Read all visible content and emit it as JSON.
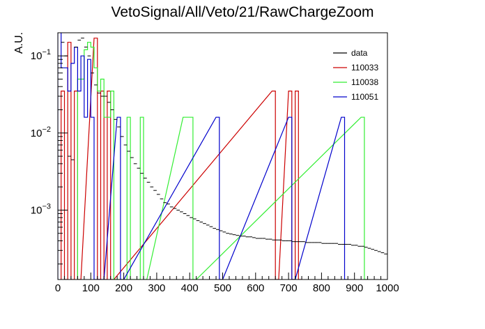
{
  "chart_data": {
    "type": "line",
    "title": "VetoSignal/All/Veto/21/RawChargeZoom",
    "xlabel": "",
    "ylabel": "A.U.",
    "xlim": [
      0,
      1000
    ],
    "ylim_log10": [
      -3.9,
      -0.7
    ],
    "yscale": "log",
    "x_ticks": [
      {
        "v": 0,
        "label": "0"
      },
      {
        "v": 100,
        "label": "100"
      },
      {
        "v": 200,
        "label": "200"
      },
      {
        "v": 300,
        "label": "300"
      },
      {
        "v": 400,
        "label": "400"
      },
      {
        "v": 500,
        "label": "500"
      },
      {
        "v": 600,
        "label": "600"
      },
      {
        "v": 700,
        "label": "700"
      },
      {
        "v": 800,
        "label": "800"
      },
      {
        "v": 900,
        "label": "900"
      },
      {
        "v": 1000,
        "label": "1000"
      }
    ],
    "y_ticks": [
      {
        "v": -1,
        "base": "10",
        "exp": "−1"
      },
      {
        "v": -2,
        "base": "10",
        "exp": "−2"
      },
      {
        "v": -3,
        "base": "10",
        "exp": "−3"
      }
    ],
    "legend_position": "top-right",
    "series": [
      {
        "name": "data",
        "color": "#000000",
        "kind": "errorbar",
        "x": [
          5,
          15,
          25,
          35,
          45,
          55,
          65,
          75,
          85,
          95,
          105,
          115,
          125,
          135,
          145,
          155,
          165,
          175,
          185,
          195,
          205,
          215,
          225,
          235,
          245,
          255,
          265,
          275,
          285,
          295,
          305,
          315,
          325,
          335,
          345,
          355,
          365,
          375,
          385,
          395,
          405,
          415,
          425,
          435,
          445,
          455,
          465,
          475,
          485,
          495,
          505,
          515,
          525,
          535,
          545,
          555,
          565,
          575,
          585,
          595,
          605,
          615,
          625,
          635,
          645,
          655,
          665,
          675,
          685,
          695,
          705,
          715,
          725,
          735,
          745,
          755,
          765,
          775,
          785,
          795,
          805,
          815,
          825,
          835,
          845,
          855,
          865,
          875,
          885,
          895,
          905,
          915,
          925,
          935,
          945,
          955,
          965,
          975,
          985,
          995
        ],
        "y": [
          0.2,
          0.15,
          0.1,
          0.005,
          0.0045,
          0.13,
          0.16,
          0.17,
          0.13,
          0.1,
          0.06,
          0.042,
          0.033,
          0.03,
          0.03,
          0.025,
          0.02,
          0.015,
          0.012,
          0.009,
          0.007,
          0.0058,
          0.0048,
          0.004,
          0.0035,
          0.003,
          0.0026,
          0.0023,
          0.002,
          0.0018,
          0.0016,
          0.0014,
          0.00125,
          0.0012,
          0.0011,
          0.00105,
          0.001,
          0.00095,
          0.0009,
          0.00085,
          0.0008,
          0.00077,
          0.00073,
          0.0007,
          0.00067,
          0.00064,
          0.00061,
          0.00058,
          0.00056,
          0.00054,
          0.00052,
          0.0005,
          0.00049,
          0.00048,
          0.00047,
          0.00046,
          0.00046,
          0.00045,
          0.00045,
          0.00044,
          0.00043,
          0.00043,
          0.00043,
          0.00042,
          0.00042,
          0.00041,
          0.00041,
          0.00041,
          0.0004,
          0.0004,
          0.0004,
          0.00039,
          0.00039,
          0.00039,
          0.00039,
          0.00038,
          0.00038,
          0.00038,
          0.00038,
          0.00038,
          0.00037,
          0.00037,
          0.00037,
          0.00037,
          0.00037,
          0.00036,
          0.00036,
          0.00036,
          0.00036,
          0.00035,
          0.00035,
          0.00034,
          0.00034,
          0.00033,
          0.00032,
          0.00031,
          0.0003,
          0.00029,
          0.00028,
          0.00027
        ]
      },
      {
        "name": "110033",
        "color": "#cc0000",
        "kind": "hist",
        "binwidth": 10,
        "edges_x": [
          10,
          20,
          30,
          40,
          50,
          60,
          110,
          120,
          130,
          140,
          150,
          160,
          650,
          660,
          700,
          710,
          720,
          730
        ],
        "levels": [
          0.035,
          0.0,
          0.15,
          0.0,
          0.035,
          0.0,
          0.17,
          0.0,
          0.035,
          0.0,
          0.035,
          0.0,
          0.035,
          0.0,
          0.035,
          0.0,
          0.035,
          0.0
        ]
      },
      {
        "name": "110038",
        "color": "#33ee33",
        "kind": "hist",
        "binwidth": 10,
        "edges_x": [
          60,
          70,
          80,
          90,
          100,
          110,
          120,
          130,
          140,
          150,
          160,
          170,
          200,
          210,
          220,
          240,
          250,
          260,
          380,
          390,
          400,
          410,
          920,
          930
        ],
        "levels": [
          0.05,
          0.05,
          0.12,
          0.15,
          0.13,
          0.07,
          0.035,
          0.05,
          0.016,
          0.016,
          0.035,
          0.0,
          0.0,
          0.016,
          0.0,
          0.0,
          0.016,
          0.0,
          0.016,
          0.016,
          0.016,
          0.0,
          0.016,
          0.0
        ]
      },
      {
        "name": "110051",
        "color": "#0000cc",
        "kind": "hist",
        "binwidth": 10,
        "edges_x": [
          0,
          10,
          20,
          30,
          40,
          50,
          60,
          70,
          80,
          90,
          100,
          110,
          120,
          130,
          180,
          190,
          480,
          490,
          700,
          710,
          860,
          870
        ],
        "levels": [
          0.38,
          0.07,
          0.07,
          0.035,
          0.08,
          0.13,
          0.035,
          0.1,
          0.016,
          0.09,
          0.016,
          0.0,
          0.0,
          0.0,
          0.016,
          0.0,
          0.016,
          0.0,
          0.016,
          0.0,
          0.016,
          0.0
        ]
      }
    ]
  }
}
